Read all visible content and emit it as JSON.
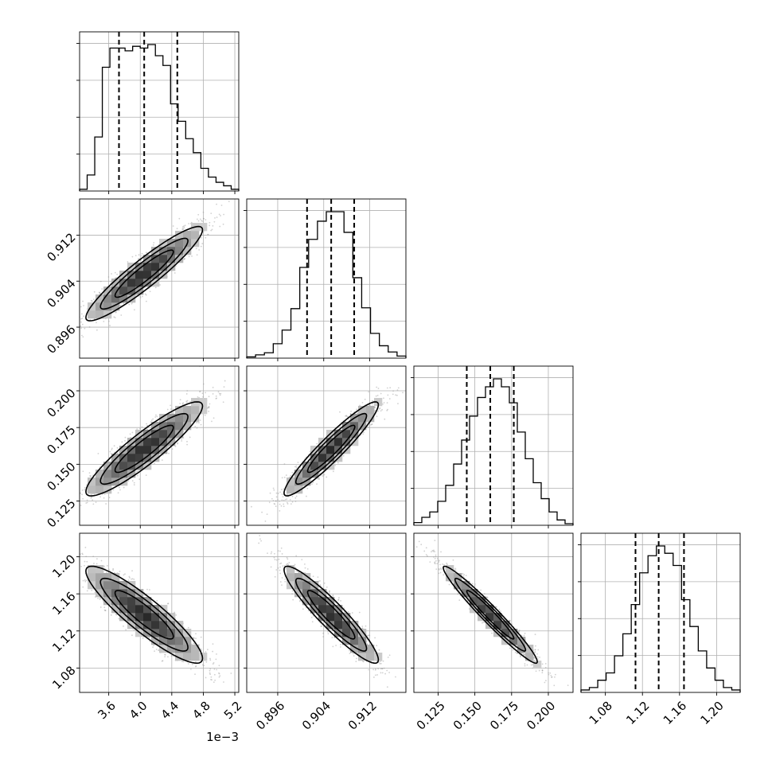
{
  "chart_data": {
    "type": "corner",
    "parameters": [
      {
        "range": [
          3.23,
          5.25
        ],
        "ticks": [
          3.6,
          4.0,
          4.4,
          4.8,
          5.2
        ],
        "tick_labels": [
          "3.6",
          "4.0",
          "4.4",
          "4.8",
          "5.2"
        ],
        "offset_text": "1e−3",
        "quantiles": [
          3.73,
          4.05,
          4.47
        ],
        "hist_edges_range": [
          3.23,
          5.25
        ],
        "hist": [
          0.5,
          4.6,
          15.5,
          35.5,
          41.0,
          41.0,
          40.2,
          41.5,
          41.0,
          42.0,
          38.8,
          36.0,
          25.0,
          20.0,
          15.0,
          11.0,
          6.5,
          4.0,
          2.5,
          1.5,
          0.5
        ]
      },
      {
        "range": [
          0.89061,
          0.91829
        ],
        "ticks": [
          0.896,
          0.904,
          0.912
        ],
        "tick_labels": [
          "0.896",
          "0.904",
          "0.912"
        ],
        "quantiles": [
          0.9011,
          0.9053,
          0.9093
        ],
        "hist_edges_range": [
          0.89061,
          0.91829
        ],
        "hist": [
          0.3,
          0.8,
          1.3,
          3.5,
          6.8,
          12.0,
          22.0,
          28.8,
          33.2,
          35.5,
          35.5,
          30.5,
          19.5,
          12.2,
          6.0,
          3.0,
          1.5,
          0.5
        ]
      },
      {
        "range": [
          0.1085,
          0.2168
        ],
        "ticks": [
          0.125,
          0.15,
          0.175,
          0.2
        ],
        "tick_labels": [
          "0.125",
          "0.150",
          "0.175",
          "0.200"
        ],
        "quantiles": [
          0.1445,
          0.1605,
          0.1765
        ],
        "hist_edges_range": [
          0.1085,
          0.2168
        ],
        "hist": [
          0.5,
          1.5,
          2.5,
          4.5,
          7.5,
          11.5,
          16.0,
          20.5,
          24.0,
          26.0,
          27.5,
          26.0,
          23.0,
          17.5,
          12.5,
          8.0,
          5.0,
          2.5,
          1.0,
          0.3
        ]
      },
      {
        "range": [
          1.0537,
          1.2254
        ],
        "ticks": [
          1.08,
          1.12,
          1.16,
          1.2
        ],
        "tick_labels": [
          "1.08",
          "1.12",
          "1.16",
          "1.20"
        ],
        "quantiles": [
          1.1125,
          1.1375,
          1.1648
        ],
        "hist_edges_range": [
          1.0537,
          1.2254
        ],
        "hist": [
          0.5,
          1.0,
          2.5,
          4.0,
          7.5,
          12.0,
          18.0,
          24.5,
          28.0,
          30.0,
          28.5,
          26.0,
          19.0,
          13.5,
          8.5,
          5.0,
          2.5,
          1.0,
          0.5
        ]
      }
    ],
    "panels_2d": [
      {
        "row": 1,
        "col": 0,
        "rho": 0.93
      },
      {
        "row": 2,
        "col": 0,
        "rho": 0.91
      },
      {
        "row": 2,
        "col": 1,
        "rho": 0.94
      },
      {
        "row": 3,
        "col": 0,
        "rho": -0.9
      },
      {
        "row": 3,
        "col": 1,
        "rho": -0.93
      },
      {
        "row": 3,
        "col": 2,
        "rho": -0.97
      }
    ],
    "grid": true,
    "colors": {
      "points": "#9a9a9a",
      "density": "#000000",
      "contour": "#000000",
      "background": "#ffffff"
    }
  }
}
